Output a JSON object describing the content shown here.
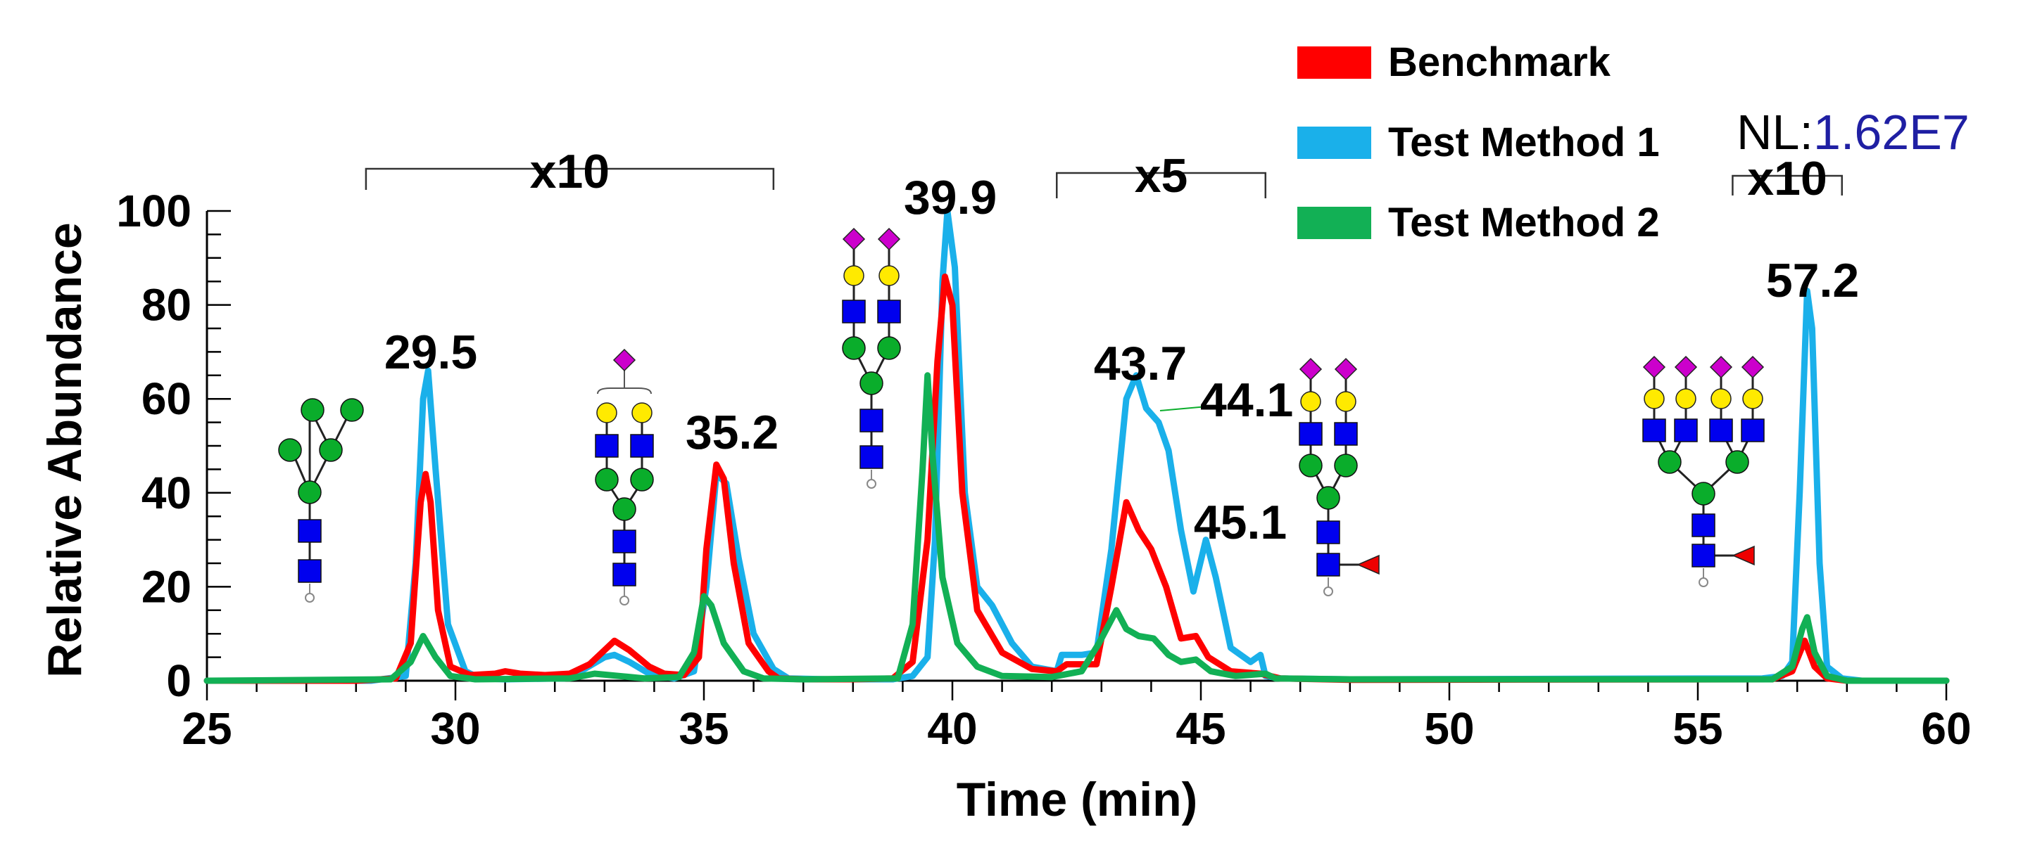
{
  "chart_data": {
    "type": "line",
    "title": "",
    "xlabel": "Time (min)",
    "ylabel": "Relative Abundance",
    "xlim": [
      25,
      60
    ],
    "ylim": [
      0,
      100
    ],
    "x_ticks": [
      25,
      30,
      35,
      40,
      45,
      50,
      55,
      60
    ],
    "y_ticks": [
      0,
      20,
      40,
      60,
      80,
      100
    ],
    "normalization": {
      "label": "NL:",
      "value": "1.62E7"
    },
    "legend_position": "top-right",
    "series": [
      {
        "name": "Benchmark",
        "color": "#ff0000",
        "points": [
          [
            25,
            0
          ],
          [
            28,
            0
          ],
          [
            28.8,
            0.5
          ],
          [
            29.1,
            8
          ],
          [
            29.3,
            38
          ],
          [
            29.4,
            44
          ],
          [
            29.5,
            38
          ],
          [
            29.65,
            15
          ],
          [
            29.9,
            3
          ],
          [
            30.3,
            1.2
          ],
          [
            30.8,
            1.5
          ],
          [
            31,
            2
          ],
          [
            31.3,
            1.5
          ],
          [
            31.8,
            1.2
          ],
          [
            32.3,
            1.5
          ],
          [
            32.7,
            3.5
          ],
          [
            33,
            6.5
          ],
          [
            33.2,
            8.5
          ],
          [
            33.5,
            6.5
          ],
          [
            33.9,
            3
          ],
          [
            34.2,
            1.5
          ],
          [
            34.6,
            1.2
          ],
          [
            34.9,
            5
          ],
          [
            35.05,
            28
          ],
          [
            35.25,
            46
          ],
          [
            35.4,
            43
          ],
          [
            35.6,
            25
          ],
          [
            35.9,
            8
          ],
          [
            36.3,
            2
          ],
          [
            36.5,
            0.5
          ],
          [
            37,
            0.3
          ],
          [
            38,
            0.3
          ],
          [
            38.8,
            0.5
          ],
          [
            39.2,
            4
          ],
          [
            39.5,
            30
          ],
          [
            39.7,
            68
          ],
          [
            39.85,
            86
          ],
          [
            40,
            80
          ],
          [
            40.2,
            40
          ],
          [
            40.5,
            15
          ],
          [
            41,
            6
          ],
          [
            41.6,
            2.5
          ],
          [
            42.1,
            2
          ],
          [
            42.3,
            3.5
          ],
          [
            42.9,
            3.5
          ],
          [
            43.2,
            20
          ],
          [
            43.5,
            38
          ],
          [
            43.75,
            32
          ],
          [
            44,
            28
          ],
          [
            44.3,
            20
          ],
          [
            44.6,
            9
          ],
          [
            44.9,
            9.5
          ],
          [
            45.15,
            5
          ],
          [
            45.6,
            2
          ],
          [
            46.2,
            1.5
          ],
          [
            46.6,
            0.5
          ],
          [
            48,
            0.2
          ],
          [
            56.5,
            0.3
          ],
          [
            56.9,
            2
          ],
          [
            57.15,
            8.5
          ],
          [
            57.35,
            3
          ],
          [
            57.6,
            0.5
          ],
          [
            58,
            0
          ],
          [
            60,
            0
          ]
        ]
      },
      {
        "name": "Test Method 1",
        "color": "#1ab0ea",
        "points": [
          [
            25,
            0
          ],
          [
            28.3,
            0
          ],
          [
            29,
            1
          ],
          [
            29.2,
            25
          ],
          [
            29.35,
            60
          ],
          [
            29.45,
            66
          ],
          [
            29.6,
            45
          ],
          [
            29.85,
            12
          ],
          [
            30.2,
            2
          ],
          [
            30.5,
            0.5
          ],
          [
            31,
            0.3
          ],
          [
            32.2,
            0.5
          ],
          [
            32.6,
            2.5
          ],
          [
            33,
            5
          ],
          [
            33.2,
            5.5
          ],
          [
            33.5,
            4
          ],
          [
            33.9,
            1.5
          ],
          [
            34.4,
            0.5
          ],
          [
            34.8,
            2
          ],
          [
            35.05,
            20
          ],
          [
            35.25,
            44
          ],
          [
            35.45,
            42
          ],
          [
            35.7,
            26
          ],
          [
            36,
            10
          ],
          [
            36.4,
            2.5
          ],
          [
            36.7,
            0.5
          ],
          [
            37.5,
            0.3
          ],
          [
            38.8,
            0.3
          ],
          [
            39.2,
            1
          ],
          [
            39.5,
            5
          ],
          [
            39.65,
            30
          ],
          [
            39.8,
            85
          ],
          [
            39.9,
            100
          ],
          [
            40.05,
            88
          ],
          [
            40.25,
            40
          ],
          [
            40.5,
            20
          ],
          [
            40.8,
            16
          ],
          [
            41.2,
            8
          ],
          [
            41.6,
            3
          ],
          [
            42.1,
            2
          ],
          [
            42.2,
            5.5
          ],
          [
            42.6,
            5.5
          ],
          [
            42.9,
            6
          ],
          [
            43.2,
            28
          ],
          [
            43.5,
            60
          ],
          [
            43.7,
            65
          ],
          [
            43.9,
            58
          ],
          [
            44.15,
            55
          ],
          [
            44.35,
            49
          ],
          [
            44.6,
            32
          ],
          [
            44.85,
            19
          ],
          [
            45.1,
            30
          ],
          [
            45.3,
            22
          ],
          [
            45.6,
            7
          ],
          [
            46,
            4
          ],
          [
            46.2,
            5.5
          ],
          [
            46.3,
            1
          ],
          [
            46.6,
            0.5
          ],
          [
            48,
            0.3
          ],
          [
            56.3,
            0.5
          ],
          [
            56.7,
            1
          ],
          [
            56.9,
            4
          ],
          [
            57.05,
            40
          ],
          [
            57.2,
            83
          ],
          [
            57.3,
            75
          ],
          [
            57.45,
            25
          ],
          [
            57.6,
            3
          ],
          [
            57.9,
            0.5
          ],
          [
            58.3,
            0
          ],
          [
            60,
            0
          ]
        ]
      },
      {
        "name": "Test Method 2",
        "color": "#12b055",
        "points": [
          [
            25,
            0
          ],
          [
            28.7,
            0.3
          ],
          [
            29.1,
            4
          ],
          [
            29.35,
            9.5
          ],
          [
            29.6,
            5
          ],
          [
            29.9,
            1
          ],
          [
            30.4,
            0.3
          ],
          [
            32.3,
            0.5
          ],
          [
            32.8,
            1.5
          ],
          [
            33.3,
            1
          ],
          [
            33.8,
            0.5
          ],
          [
            34.5,
            0.8
          ],
          [
            34.8,
            6
          ],
          [
            35,
            18
          ],
          [
            35.15,
            16
          ],
          [
            35.4,
            8
          ],
          [
            35.8,
            2
          ],
          [
            36.2,
            0.5
          ],
          [
            37,
            0.3
          ],
          [
            38.9,
            0.5
          ],
          [
            39.2,
            12
          ],
          [
            39.4,
            45
          ],
          [
            39.5,
            65
          ],
          [
            39.6,
            48
          ],
          [
            39.8,
            22
          ],
          [
            40.1,
            8
          ],
          [
            40.5,
            3
          ],
          [
            41,
            1
          ],
          [
            42,
            0.8
          ],
          [
            42.6,
            2
          ],
          [
            42.95,
            8
          ],
          [
            43.3,
            15
          ],
          [
            43.5,
            11
          ],
          [
            43.75,
            9.5
          ],
          [
            44.05,
            9
          ],
          [
            44.35,
            5.5
          ],
          [
            44.6,
            4
          ],
          [
            44.9,
            4.5
          ],
          [
            45.2,
            2
          ],
          [
            45.7,
            1
          ],
          [
            46.3,
            1.5
          ],
          [
            46.5,
            0.5
          ],
          [
            48,
            0.3
          ],
          [
            56.5,
            0.3
          ],
          [
            56.9,
            3
          ],
          [
            57.1,
            11
          ],
          [
            57.2,
            13.5
          ],
          [
            57.35,
            6
          ],
          [
            57.6,
            1
          ],
          [
            58,
            0
          ],
          [
            60,
            0
          ]
        ]
      }
    ],
    "annotations": {
      "peak_labels": [
        {
          "text": "29.5",
          "x": 29.5,
          "y": 66
        },
        {
          "text": "35.2",
          "x": 35.2,
          "y": 46
        },
        {
          "text": "39.9",
          "x": 39.9,
          "y": 100
        },
        {
          "text": "43.7",
          "x": 43.7,
          "y": 65
        },
        {
          "text": "44.1",
          "x": 44.1,
          "y": 55
        },
        {
          "text": "45.1",
          "x": 45.1,
          "y": 30
        },
        {
          "text": "57.2",
          "x": 57.2,
          "y": 83
        }
      ],
      "scale_brackets": [
        {
          "label": "x10",
          "x_start": 28.2,
          "x_end": 36.4
        },
        {
          "label": "x5",
          "x_start": 42.1,
          "x_end": 46.3
        },
        {
          "label": "x10",
          "x_start": 55.7,
          "x_end": 57.9
        }
      ]
    }
  },
  "colors": {
    "sialic_acid": "#cc00cc",
    "galactose": "#ffea00",
    "glcnac": "#0000ee",
    "mannose": "#0aad2b",
    "fucose": "#ee0000"
  },
  "glycan_icons": [
    "glycan-man5-icon",
    "glycan-monosialyl-biantennary-icon",
    "glycan-disialyl-biantennary-icon",
    "glycan-disialyl-biantennary-fucosylated-icon",
    "glycan-tetrasialyl-tetraantennary-fucosylated-icon"
  ]
}
